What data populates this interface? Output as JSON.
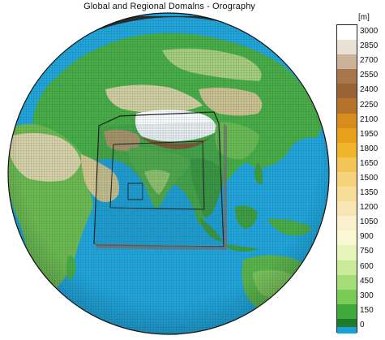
{
  "title": "Global and Regional Domalns - Orography",
  "legend": {
    "unit": "[m]",
    "levels": [
      {
        "label": "3000",
        "color": "#ffffff"
      },
      {
        "label": "2850",
        "color": "#e9e0d6"
      },
      {
        "label": "2700",
        "color": "#cbb399"
      },
      {
        "label": "2550",
        "color": "#a8764c"
      },
      {
        "label": "2400",
        "color": "#9a6335"
      },
      {
        "label": "2250",
        "color": "#b5722a"
      },
      {
        "label": "2100",
        "color": "#d98c1e"
      },
      {
        "label": "1950",
        "color": "#e9a11b"
      },
      {
        "label": "1800",
        "color": "#f0b52a"
      },
      {
        "label": "1650",
        "color": "#f3c456"
      },
      {
        "label": "1500",
        "color": "#f6d37a"
      },
      {
        "label": "1350",
        "color": "#f8dd98"
      },
      {
        "label": "1200",
        "color": "#fae6b5"
      },
      {
        "label": "1050",
        "color": "#fcf0cd"
      },
      {
        "label": "900",
        "color": "#fbf8d4"
      },
      {
        "label": "750",
        "color": "#e6f4b9"
      },
      {
        "label": "600",
        "color": "#c9eb9a"
      },
      {
        "label": "450",
        "color": "#a5dd78"
      },
      {
        "label": "300",
        "color": "#7bcb57"
      },
      {
        "label": "150",
        "color": "#3ea83a"
      },
      {
        "label": "0",
        "color": "#1f7a2d"
      }
    ],
    "ocean_color": "#1a9fd8"
  },
  "colors": {
    "ocean": "#22a6dc",
    "land_low": "#3a9a3a",
    "land_mid": "#b7d97e",
    "desert": "#d9cfa6",
    "mountain": "#8a5a32",
    "snow": "#ffffff",
    "grid": "#0b3b4f",
    "domain_box": "#222222"
  }
}
